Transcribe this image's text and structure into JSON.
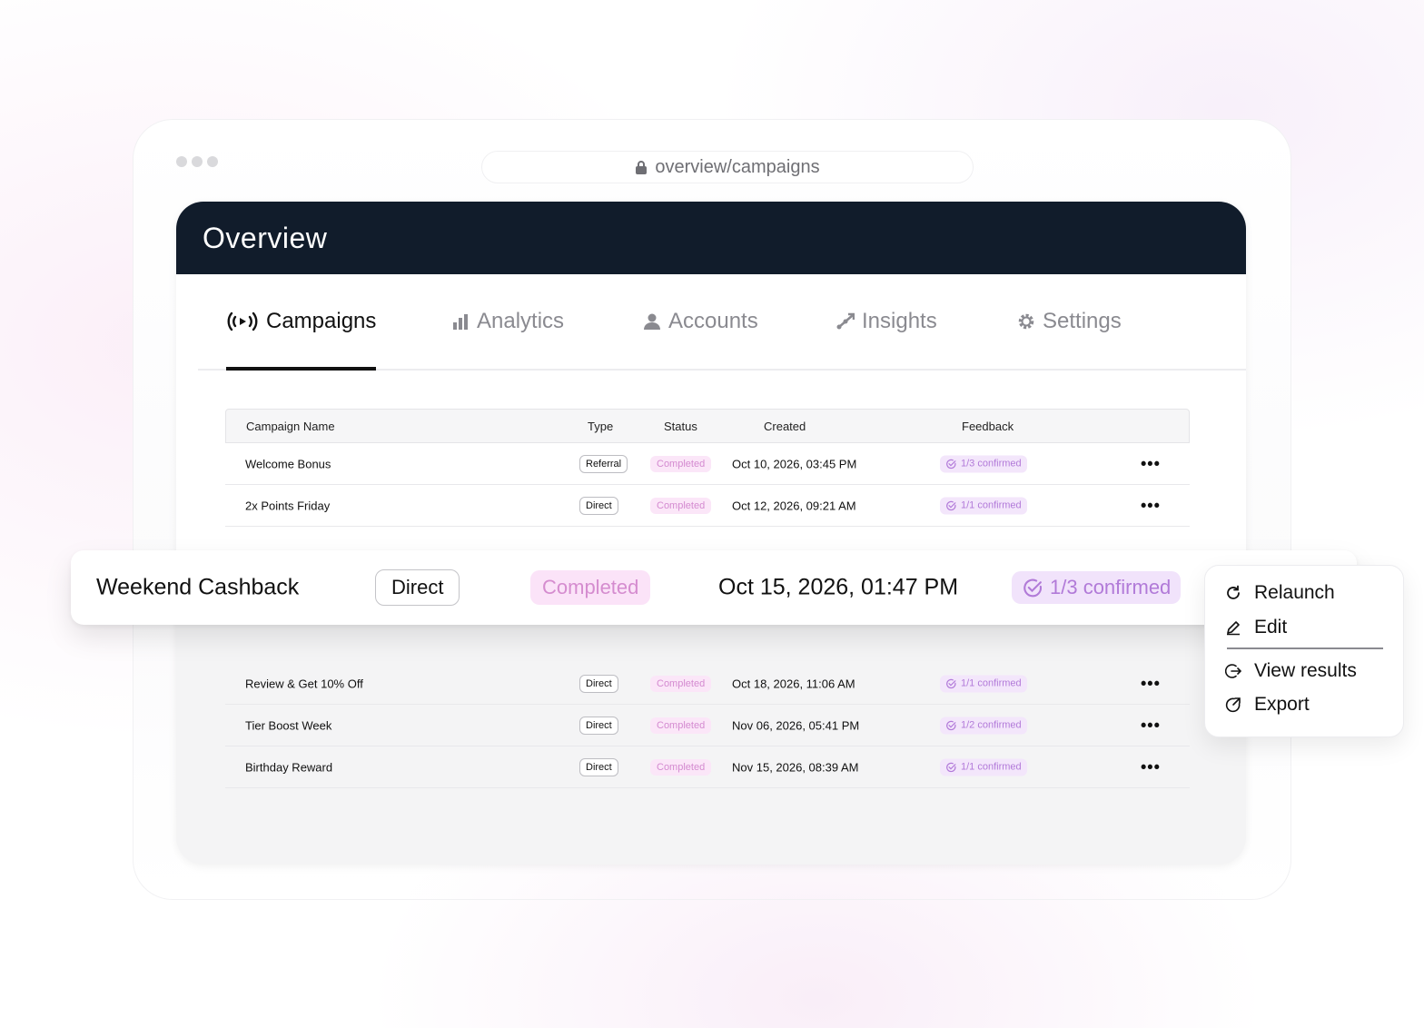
{
  "browser": {
    "url": "overview/campaigns"
  },
  "header": {
    "title": "Overview"
  },
  "tabs": [
    {
      "label": "Campaigns",
      "icon": "broadcast-icon",
      "active": true
    },
    {
      "label": "Analytics",
      "icon": "bar-chart-icon"
    },
    {
      "label": "Accounts",
      "icon": "user-icon"
    },
    {
      "label": "Insights",
      "icon": "trend-icon"
    },
    {
      "label": "Settings",
      "icon": "gear-icon"
    }
  ],
  "table": {
    "columns": [
      "Campaign Name",
      "Type",
      "Status",
      "Created",
      "Feedback"
    ],
    "rows_top": [
      {
        "name": "Welcome Bonus",
        "type": "Referral",
        "status": "Completed",
        "created": "Oct 10, 2026, 03:45 PM",
        "feedback": "1/3 confirmed"
      },
      {
        "name": "2x Points Friday",
        "type": "Direct",
        "status": "Completed",
        "created": "Oct 12, 2026, 09:21 AM",
        "feedback": "1/1 confirmed"
      }
    ],
    "highlighted": {
      "name": "Weekend Cashback",
      "type": "Direct",
      "status": "Completed",
      "created": "Oct 15, 2026, 01:47 PM",
      "feedback": "1/3 confirmed"
    },
    "rows_bottom": [
      {
        "name": "Review & Get 10% Off",
        "type": "Direct",
        "status": "Completed",
        "created": "Oct 18, 2026, 11:06 AM",
        "feedback": "1/1 confirmed"
      },
      {
        "name": "Tier Boost Week",
        "type": "Direct",
        "status": "Completed",
        "created": "Nov 06, 2026, 05:41 PM",
        "feedback": "1/2 confirmed"
      },
      {
        "name": "Birthday Reward",
        "type": "Direct",
        "status": "Completed",
        "created": "Nov 15, 2026, 08:39 AM",
        "feedback": "1/1 confirmed"
      }
    ],
    "more_glyph": "•••"
  },
  "menu": {
    "items": [
      "Relaunch",
      "Edit",
      "View results",
      "Export"
    ]
  },
  "colors": {
    "header_bg": "#111c2b",
    "status_bg": "#fbe6f8",
    "status_text": "#d48ad0",
    "feedback_bg": "#f3e6fb",
    "feedback_text": "#b27ad9"
  }
}
